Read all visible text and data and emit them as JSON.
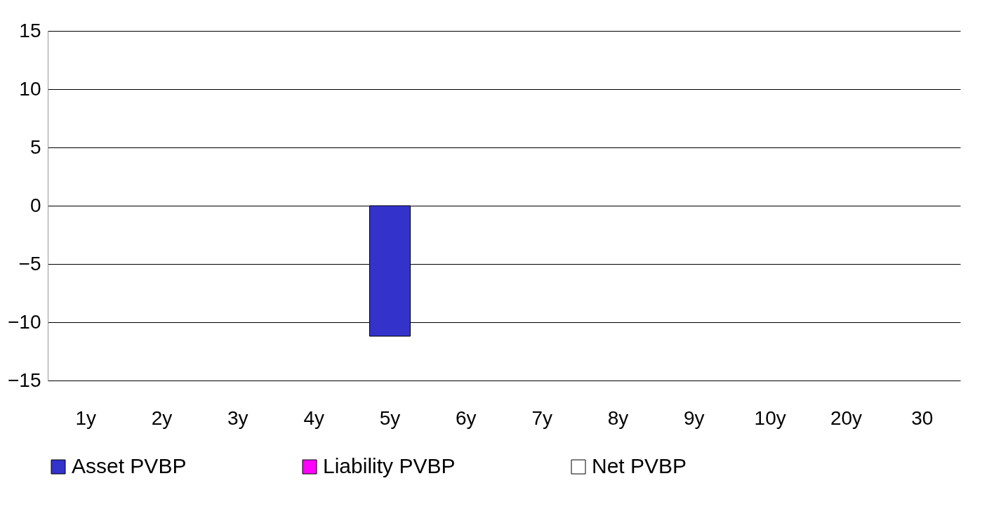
{
  "chart_data": {
    "type": "bar",
    "categories": [
      "1y",
      "2y",
      "3y",
      "4y",
      "5y",
      "6y",
      "7y",
      "8y",
      "9y",
      "10y",
      "20y",
      "30"
    ],
    "series": [
      {
        "name": "Asset PVBP",
        "color": "#3333cc",
        "values": [
          null,
          null,
          null,
          null,
          -11.2,
          null,
          null,
          null,
          null,
          null,
          null,
          null
        ]
      },
      {
        "name": "Liability PVBP",
        "color": "#ff00ff",
        "values": [
          null,
          null,
          null,
          null,
          null,
          null,
          null,
          null,
          null,
          null,
          null,
          null
        ]
      },
      {
        "name": "Net PVBP",
        "color": "#ffffff",
        "values": [
          null,
          null,
          null,
          null,
          null,
          null,
          null,
          null,
          null,
          null,
          null,
          null
        ]
      }
    ],
    "ylim": [
      -15,
      15
    ],
    "yticks": [
      -15,
      -10,
      -5,
      0,
      5,
      10,
      15
    ],
    "grid": "y",
    "legend": "bottom"
  }
}
